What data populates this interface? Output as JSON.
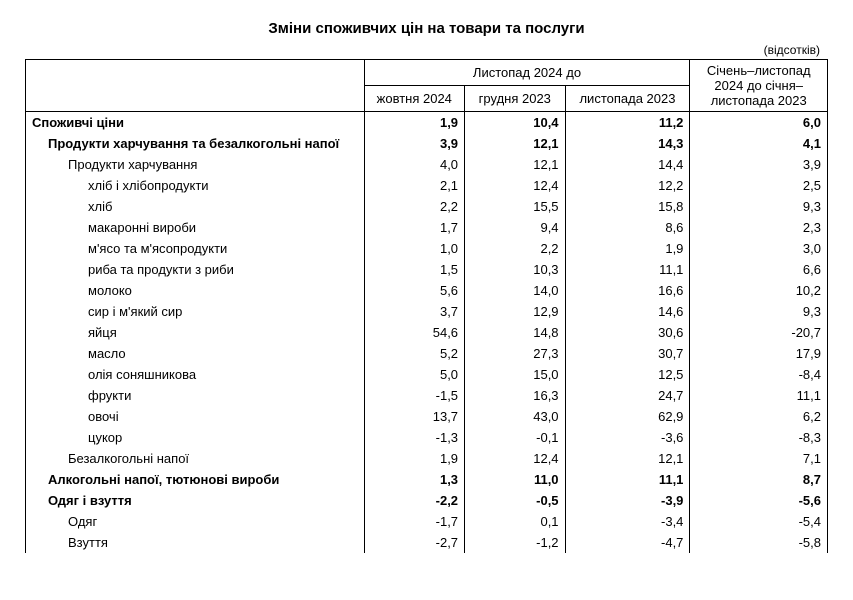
{
  "title": "Зміни споживчих цін на товари та послуги",
  "unit": "(відсотків)",
  "header": {
    "group1": "Листопад 2024 до",
    "col1": "жовтня 2024",
    "col2": "грудня 2023",
    "col3": "листопада 2023",
    "col4": "Січень–листопад 2024 до січня–листопада 2023"
  },
  "rows": [
    {
      "label": "Споживчі ціни",
      "v": [
        "1,9",
        "10,4",
        "11,2",
        "6,0"
      ],
      "bold": true,
      "indent": 0
    },
    {
      "label": "Продукти харчування та безалкогольні напої",
      "v": [
        "3,9",
        "12,1",
        "14,3",
        "4,1"
      ],
      "bold": true,
      "indent": 1
    },
    {
      "label": "Продукти харчування",
      "v": [
        "4,0",
        "12,1",
        "14,4",
        "3,9"
      ],
      "bold": false,
      "indent": 2
    },
    {
      "label": "хліб і хлібопродукти",
      "v": [
        "2,1",
        "12,4",
        "12,2",
        "2,5"
      ],
      "bold": false,
      "indent": 3
    },
    {
      "label": "хліб",
      "v": [
        "2,2",
        "15,5",
        "15,8",
        "9,3"
      ],
      "bold": false,
      "indent": 3
    },
    {
      "label": "макаронні вироби",
      "v": [
        "1,7",
        "9,4",
        "8,6",
        "2,3"
      ],
      "bold": false,
      "indent": 3
    },
    {
      "label": "м'ясо та м'ясопродукти",
      "v": [
        "1,0",
        "2,2",
        "1,9",
        "3,0"
      ],
      "bold": false,
      "indent": 3
    },
    {
      "label": "риба та продукти з риби",
      "v": [
        "1,5",
        "10,3",
        "11,1",
        "6,6"
      ],
      "bold": false,
      "indent": 3
    },
    {
      "label": "молоко",
      "v": [
        "5,6",
        "14,0",
        "16,6",
        "10,2"
      ],
      "bold": false,
      "indent": 3
    },
    {
      "label": "сир і м'який сир",
      "v": [
        "3,7",
        "12,9",
        "14,6",
        "9,3"
      ],
      "bold": false,
      "indent": 3
    },
    {
      "label": "яйця",
      "v": [
        "54,6",
        "14,8",
        "30,6",
        "-20,7"
      ],
      "bold": false,
      "indent": 3
    },
    {
      "label": "масло",
      "v": [
        "5,2",
        "27,3",
        "30,7",
        "17,9"
      ],
      "bold": false,
      "indent": 3
    },
    {
      "label": "олія соняшникова",
      "v": [
        "5,0",
        "15,0",
        "12,5",
        "-8,4"
      ],
      "bold": false,
      "indent": 3
    },
    {
      "label": "фрукти",
      "v": [
        "-1,5",
        "16,3",
        "24,7",
        "11,1"
      ],
      "bold": false,
      "indent": 3
    },
    {
      "label": "овочі",
      "v": [
        "13,7",
        "43,0",
        "62,9",
        "6,2"
      ],
      "bold": false,
      "indent": 3
    },
    {
      "label": "цукор",
      "v": [
        "-1,3",
        "-0,1",
        "-3,6",
        "-8,3"
      ],
      "bold": false,
      "indent": 3
    },
    {
      "label": "Безалкогольні напої",
      "v": [
        "1,9",
        "12,4",
        "12,1",
        "7,1"
      ],
      "bold": false,
      "indent": 2
    },
    {
      "label": "Алкогольні напої, тютюнові вироби",
      "v": [
        "1,3",
        "11,0",
        "11,1",
        "8,7"
      ],
      "bold": true,
      "indent": 1
    },
    {
      "label": "Одяг і взуття",
      "v": [
        "-2,2",
        "-0,5",
        "-3,9",
        "-5,6"
      ],
      "bold": true,
      "indent": 1
    },
    {
      "label": "Одяг",
      "v": [
        "-1,7",
        "0,1",
        "-3,4",
        "-5,4"
      ],
      "bold": false,
      "indent": 2
    },
    {
      "label": "Взуття",
      "v": [
        "-2,7",
        "-1,2",
        "-4,7",
        "-5,8"
      ],
      "bold": false,
      "indent": 2
    }
  ]
}
